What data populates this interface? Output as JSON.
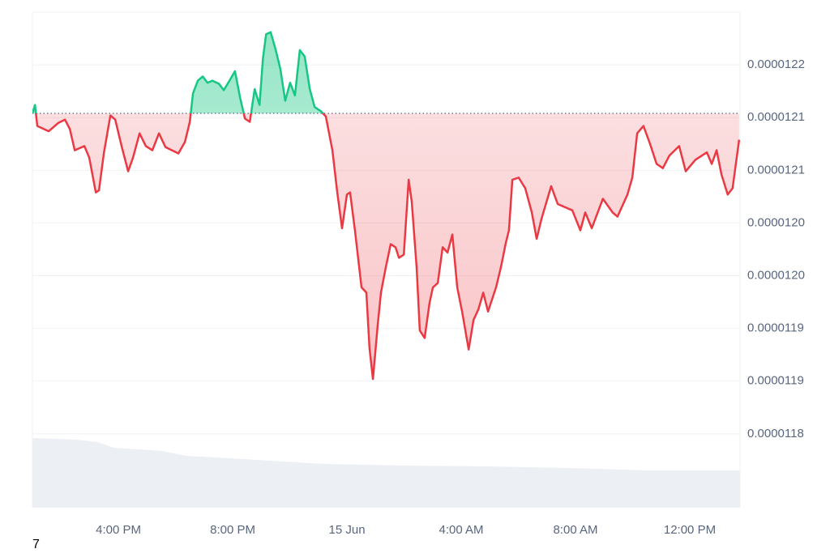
{
  "chart_data": {
    "type": "line",
    "x": [
      -11.01,
      -10.92,
      -10.84,
      -10.44,
      -10.1,
      -9.87,
      -9.7,
      -9.53,
      -9.19,
      -9.02,
      -8.79,
      -8.68,
      -8.51,
      -8.28,
      -8.11,
      -7.89,
      -7.66,
      -7.49,
      -7.26,
      -7.04,
      -6.81,
      -6.58,
      -6.35,
      -5.9,
      -5.67,
      -5.5,
      -5.39,
      -5.22,
      -5.05,
      -4.88,
      -4.71,
      -4.48,
      -4.31,
      -4.09,
      -3.92,
      -3.74,
      -3.57,
      -3.4,
      -3.23,
      -3.06,
      -2.94,
      -2.83,
      -2.67,
      -2.5,
      -2.33,
      -2.16,
      -1.99,
      -1.82,
      -1.65,
      -1.48,
      -1.3,
      -1.13,
      -0.91,
      -0.74,
      -0.51,
      -0.34,
      -0.17,
      0,
      0.11,
      0.28,
      0.51,
      0.68,
      0.79,
      0.91,
      1.08,
      1.19,
      1.36,
      1.53,
      1.7,
      1.82,
      1.99,
      2.16,
      2.27,
      2.44,
      2.55,
      2.72,
      2.89,
      3.01,
      3.18,
      3.35,
      3.52,
      3.69,
      3.86,
      4.03,
      4.26,
      4.43,
      4.6,
      4.77,
      4.94,
      5.22,
      5.39,
      5.56,
      5.67,
      5.79,
      6.01,
      6.24,
      6.47,
      6.64,
      6.81,
      7.15,
      7.38,
      7.89,
      8.17,
      8.34,
      8.57,
      8.96,
      9.3,
      9.47,
      9.82,
      9.99,
      10.16,
      10.38,
      10.61,
      10.84,
      11.06,
      11.29,
      11.63,
      11.86,
      12.2,
      12.6,
      12.77,
      12.94,
      13.11,
      13.33,
      13.5,
      13.73
    ],
    "values": [
      1.2154e-05,
      1.2162e-05,
      1.2142e-05,
      1.2137e-05,
      1.2145e-05,
      1.2148e-05,
      1.2139e-05,
      1.2119e-05,
      1.2123e-05,
      1.2112e-05,
      1.2079e-05,
      1.2081e-05,
      1.2116e-05,
      1.2152e-05,
      1.2148e-05,
      1.2123e-05,
      1.2099e-05,
      1.2112e-05,
      1.2135e-05,
      1.2123e-05,
      1.2119e-05,
      1.2135e-05,
      1.2122e-05,
      1.2116e-05,
      1.2127e-05,
      1.2146e-05,
      1.2173e-05,
      1.2185e-05,
      1.2189e-05,
      1.2183e-05,
      1.2185e-05,
      1.2182e-05,
      1.2176e-05,
      1.2186e-05,
      1.2194e-05,
      1.2169e-05,
      1.2149e-05,
      1.2146e-05,
      1.2177e-05,
      1.2162e-05,
      1.2206e-05,
      1.2229e-05,
      1.2231e-05,
      1.2215e-05,
      1.2196e-05,
      1.2166e-05,
      1.2183e-05,
      1.2171e-05,
      1.2214e-05,
      1.2208e-05,
      1.2177e-05,
      1.216e-05,
      1.2156e-05,
      1.2151e-05,
      1.2119e-05,
      1.2079e-05,
      1.2045e-05,
      1.2077e-05,
      1.2079e-05,
      1.2043e-05,
      1.1989e-05,
      1.1984e-05,
      1.1931e-05,
      1.1902e-05,
      1.1954e-05,
      1.1984e-05,
      1.2008e-05,
      1.203e-05,
      1.2027e-05,
      1.2017e-05,
      1.202e-05,
      1.2091e-05,
      1.207e-05,
      1.2008e-05,
      1.1948e-05,
      1.1941e-05,
      1.1974e-05,
      1.1989e-05,
      1.1993e-05,
      1.2027e-05,
      1.2022e-05,
      1.2039e-05,
      1.1989e-05,
      1.1966e-05,
      1.193e-05,
      1.1958e-05,
      1.1968e-05,
      1.1984e-05,
      1.1966e-05,
      1.1989e-05,
      1.2008e-05,
      1.2031e-05,
      1.2043e-05,
      1.2091e-05,
      1.2093e-05,
      1.2083e-05,
      1.206e-05,
      1.2035e-05,
      1.2054e-05,
      1.2085e-05,
      1.2068e-05,
      1.2062e-05,
      1.2043e-05,
      1.206e-05,
      1.2045e-05,
      1.2073e-05,
      1.206e-05,
      1.2056e-05,
      1.2077e-05,
      1.2093e-05,
      1.2135e-05,
      1.2142e-05,
      1.2125e-05,
      1.2106e-05,
      1.2102e-05,
      1.2114e-05,
      1.2123e-05,
      1.2099e-05,
      1.211e-05,
      1.2117e-05,
      1.2106e-05,
      1.2119e-05,
      1.2096e-05,
      1.2077e-05,
      1.2083e-05,
      1.2129e-05
    ],
    "baseline": 1.2154e-05,
    "up_color": "#16c784",
    "down_color": "#ea3943",
    "xlim": [
      -11.01,
      13.76
    ],
    "ylim": [
      1.178e-05,
      1.225e-05
    ],
    "xticks": [
      {
        "value": -8,
        "label": "4:00 PM"
      },
      {
        "value": -4,
        "label": "8:00 PM"
      },
      {
        "value": 0,
        "label": "15 Jun"
      },
      {
        "value": 4,
        "label": "4:00 AM"
      },
      {
        "value": 8,
        "label": "8:00 AM"
      },
      {
        "value": 12,
        "label": "12:00 PM"
      }
    ],
    "yticks": [
      {
        "value": 1.22e-05,
        "label": "0.0000122"
      },
      {
        "value": 1.215e-05,
        "label": "0.0000121"
      },
      {
        "value": 1.21e-05,
        "label": "0.0000121"
      },
      {
        "value": 1.205e-05,
        "label": "0.0000120"
      },
      {
        "value": 1.2e-05,
        "label": "0.0000120"
      },
      {
        "value": 1.195e-05,
        "label": "0.0000119"
      },
      {
        "value": 1.19e-05,
        "label": "0.0000119"
      },
      {
        "value": 1.185e-05,
        "label": "0.0000118"
      }
    ],
    "grid": true
  },
  "footer_text": "7"
}
